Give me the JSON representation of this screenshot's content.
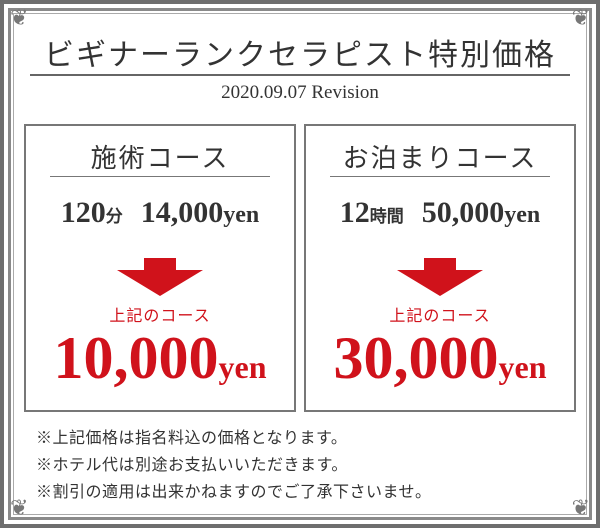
{
  "header": {
    "title": "ビギナーランクセラピスト特別価格",
    "revision": "2020.09.07 Revision"
  },
  "courses": [
    {
      "name": "施術コース",
      "duration_num": "120",
      "duration_unit": "分",
      "price_num": "14,000",
      "price_unit": "yen",
      "discount_label": "上記のコース",
      "new_price_num": "10,000",
      "new_price_unit": "yen"
    },
    {
      "name": "お泊まりコース",
      "duration_num": "12",
      "duration_unit": "時間",
      "price_num": "50,000",
      "price_unit": "yen",
      "discount_label": "上記のコース",
      "new_price_num": "30,000",
      "new_price_unit": "yen"
    }
  ],
  "notes": [
    "※上記価格は指名料込の価格となります。",
    "※ホテル代は別途お支払いいただきます。",
    "※割引の適用は出来かねますのでご了承下さいませ。"
  ],
  "colors": {
    "accent": "#d0121b",
    "frame": "#6e6e6e",
    "text": "#333333"
  },
  "icons": {
    "arrow": "down-arrow-icon",
    "corner": "ornament-icon"
  }
}
